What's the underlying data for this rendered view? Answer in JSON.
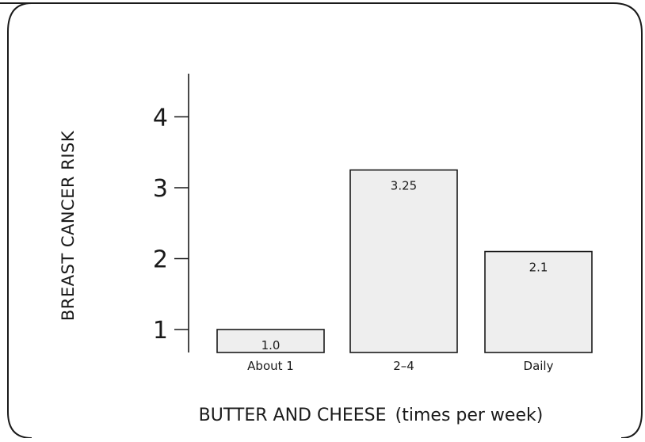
{
  "chart_data": {
    "type": "bar",
    "categories": [
      "About 1",
      "2–4",
      "Daily"
    ],
    "values": [
      1.0,
      3.25,
      2.1
    ],
    "value_labels": [
      "1.0",
      "3.25",
      "2.1"
    ],
    "title": "",
    "xlabel_main": "BUTTER AND CHEESE",
    "xlabel_unit": "(times per week)",
    "ylabel": "BREAST CANCER RISK",
    "yticks": [
      "1",
      "2",
      "3",
      "4"
    ],
    "ylim": [
      0.7,
      4.5
    ],
    "grid": false,
    "legend": "none"
  },
  "colors": {
    "bar_fill": "#eeeeee",
    "stroke": "#1a1a1a"
  }
}
